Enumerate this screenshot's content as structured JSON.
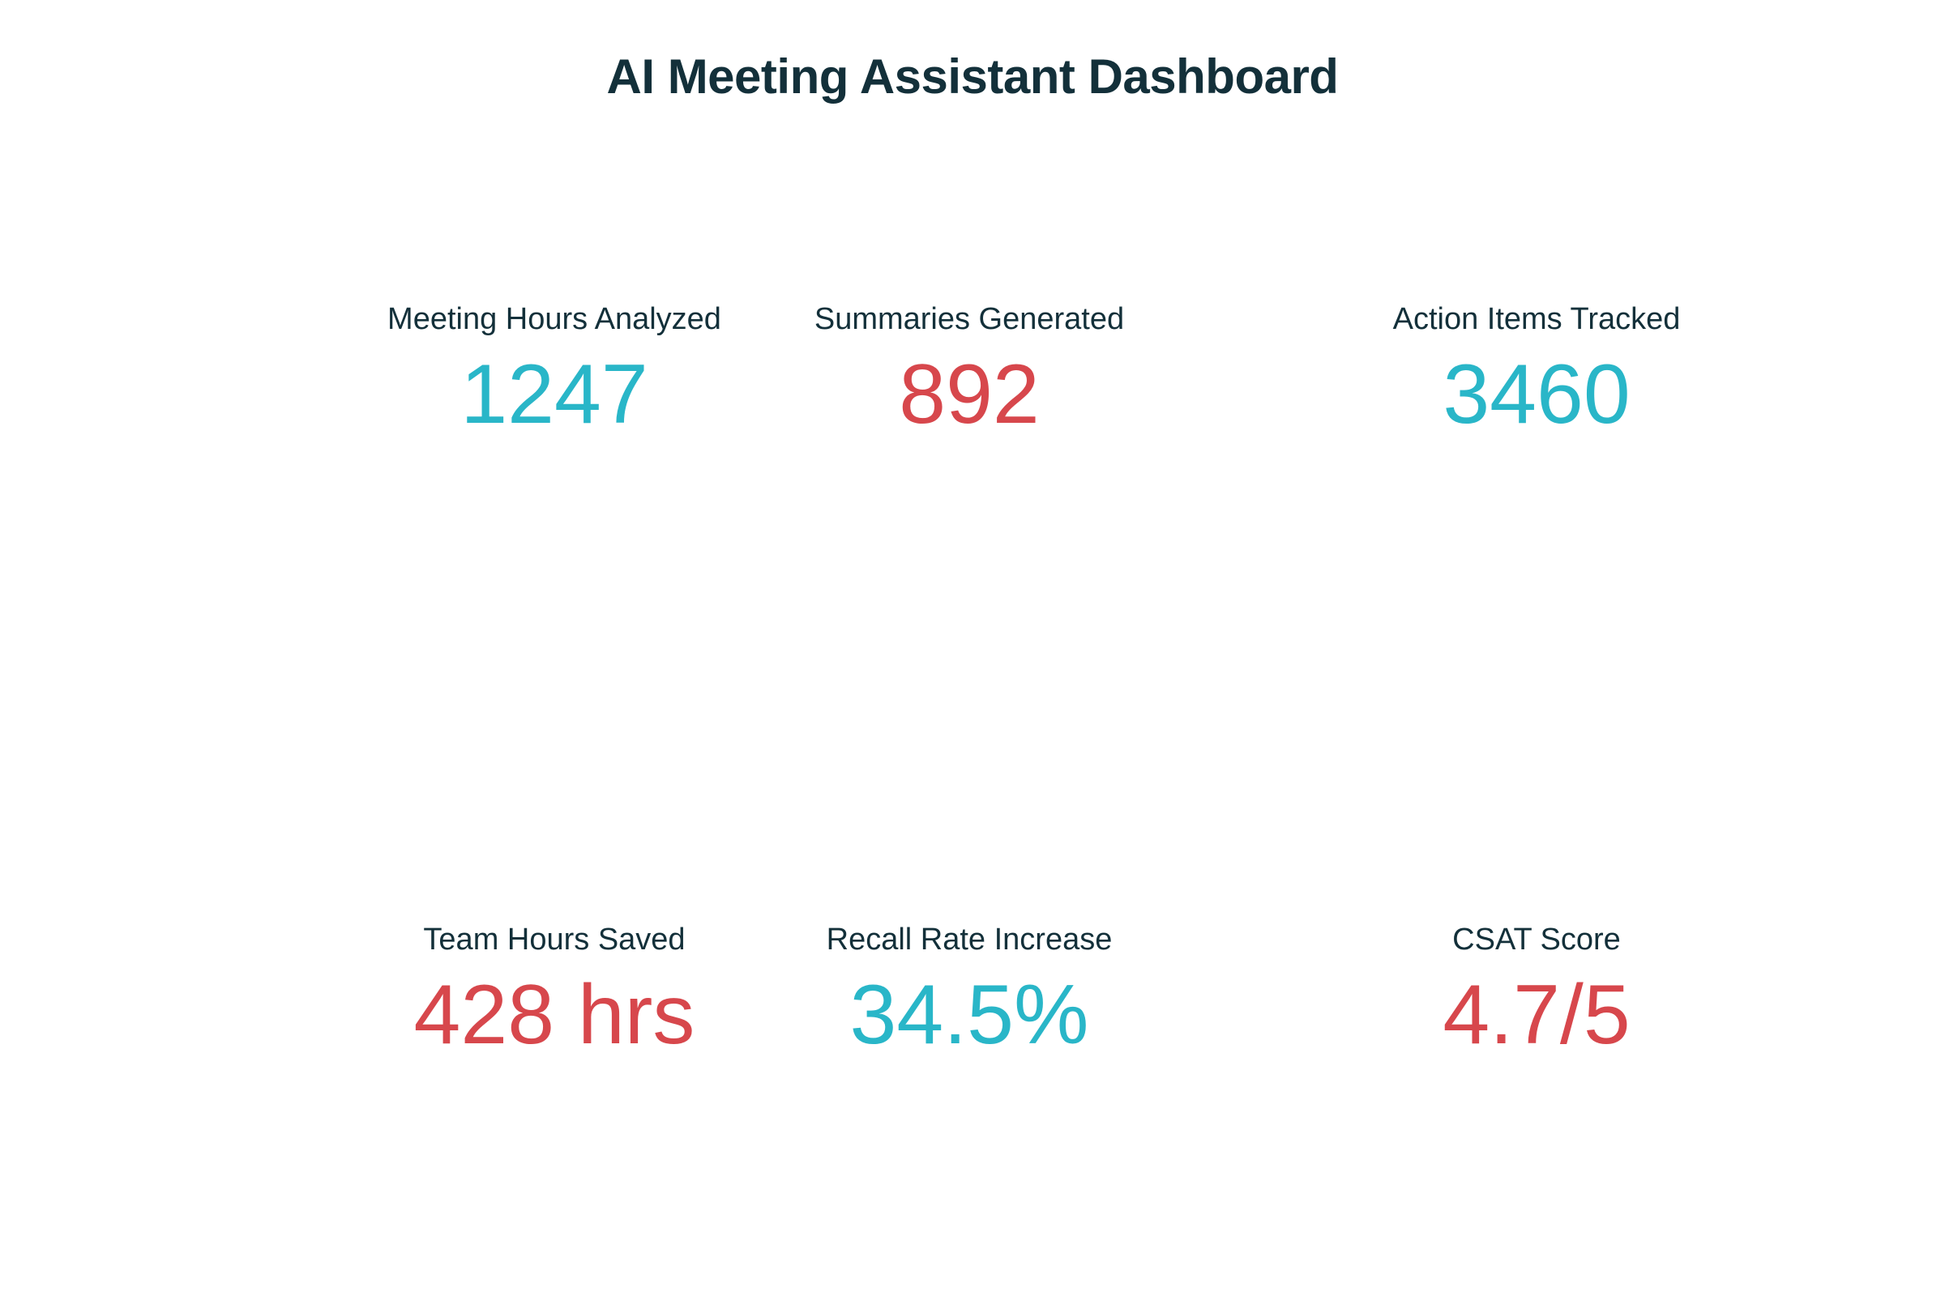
{
  "dashboard": {
    "title": "AI Meeting Assistant Dashboard"
  },
  "kpis": [
    {
      "label": "Meeting Hours Analyzed",
      "value": "1247",
      "color": "#29b6c8"
    },
    {
      "label": "Summaries Generated",
      "value": "892",
      "color": "#d7474c"
    },
    {
      "label": "Action Items Tracked",
      "value": "3460",
      "color": "#29b6c8"
    },
    {
      "label": "Team Hours Saved",
      "value": "428 hrs",
      "color": "#d7474c"
    },
    {
      "label": "Recall Rate Increase",
      "value": "34.5%",
      "color": "#29b6c8"
    },
    {
      "label": "CSAT Score",
      "value": "4.7/5",
      "color": "#d7474c"
    }
  ]
}
